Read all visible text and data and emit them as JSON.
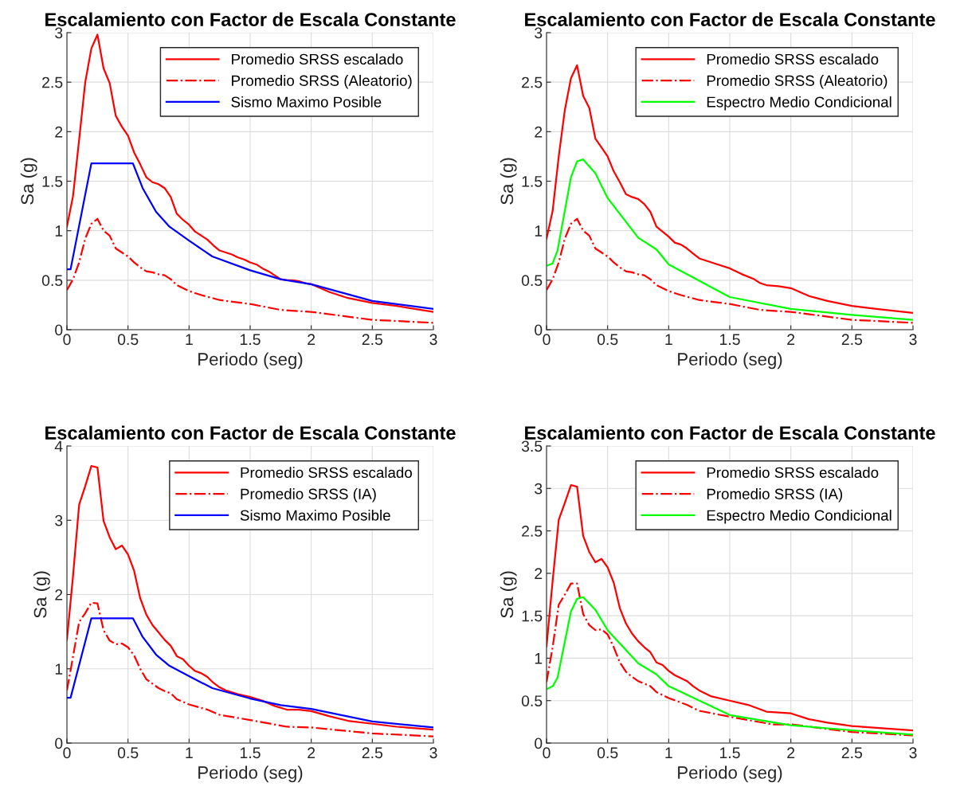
{
  "chart_data": [
    {
      "type": "line",
      "title": "Escalamiento con Factor de Escala Constante",
      "xlabel": "Periodo (seg)",
      "ylabel": "Sa (g)",
      "xlim": [
        0,
        3
      ],
      "xticks": [
        0,
        0.5,
        1,
        1.5,
        2,
        2.5,
        3
      ],
      "ylim": [
        0,
        3
      ],
      "yticks": [
        0,
        0.5,
        1,
        1.5,
        2,
        2.5,
        3
      ],
      "grid": true,
      "legend": "top right",
      "series": [
        {
          "name": "Promedio SRSS escalado",
          "color": "#ff0000",
          "line_style": "solid",
          "x": [
            0,
            0.05,
            0.1,
            0.15,
            0.2,
            0.25,
            0.3,
            0.35,
            0.4,
            0.45,
            0.5,
            0.55,
            0.6,
            0.65,
            0.7,
            0.75,
            0.8,
            0.85,
            0.9,
            0.95,
            1.0,
            1.05,
            1.1,
            1.15,
            1.2,
            1.25,
            1.3,
            1.35,
            1.4,
            1.45,
            1.5,
            1.55,
            1.6,
            1.65,
            1.7,
            1.75,
            1.8,
            1.85,
            1.9,
            1.95,
            2.0,
            2.15,
            2.3,
            2.5,
            2.7,
            3.0
          ],
          "values": [
            1.04,
            1.35,
            1.92,
            2.5,
            2.84,
            2.98,
            2.64,
            2.49,
            2.16,
            2.05,
            1.96,
            1.79,
            1.67,
            1.54,
            1.49,
            1.47,
            1.43,
            1.34,
            1.17,
            1.11,
            1.06,
            0.99,
            0.95,
            0.91,
            0.85,
            0.8,
            0.78,
            0.76,
            0.73,
            0.71,
            0.68,
            0.66,
            0.62,
            0.59,
            0.55,
            0.51,
            0.5,
            0.5,
            0.49,
            0.47,
            0.46,
            0.38,
            0.32,
            0.27,
            0.24,
            0.18
          ]
        },
        {
          "name": "Promedio SRSS (Aleatorio)",
          "color": "#ff0000",
          "line_style": "dashdot",
          "x": [
            0,
            0.05,
            0.1,
            0.15,
            0.2,
            0.25,
            0.3,
            0.35,
            0.4,
            0.45,
            0.5,
            0.55,
            0.6,
            0.65,
            0.7,
            0.75,
            0.8,
            0.85,
            0.9,
            1.0,
            1.1,
            1.25,
            1.5,
            1.75,
            2.0,
            2.5,
            3.0
          ],
          "values": [
            0.4,
            0.51,
            0.68,
            0.92,
            1.07,
            1.12,
            1.0,
            0.95,
            0.82,
            0.78,
            0.74,
            0.68,
            0.63,
            0.59,
            0.58,
            0.56,
            0.55,
            0.51,
            0.45,
            0.39,
            0.35,
            0.3,
            0.26,
            0.2,
            0.18,
            0.1,
            0.07
          ]
        },
        {
          "name": "Sismo Maximo Posible",
          "color": "#0000ff",
          "line_style": "solid",
          "x": [
            0,
            0.03,
            0.2,
            0.54,
            0.62,
            0.73,
            0.84,
            1.0,
            1.19,
            1.5,
            1.75,
            2.0,
            2.5,
            3.0
          ],
          "values": [
            0.61,
            0.61,
            1.68,
            1.68,
            1.43,
            1.19,
            1.04,
            0.9,
            0.74,
            0.6,
            0.51,
            0.46,
            0.29,
            0.21
          ]
        }
      ]
    },
    {
      "type": "line",
      "title": "Escalamiento con Factor de Escala Constante",
      "xlabel": "Periodo (seg)",
      "ylabel": "Sa (g)",
      "xlim": [
        0,
        3
      ],
      "xticks": [
        0,
        0.5,
        1,
        1.5,
        2,
        2.5,
        3
      ],
      "ylim": [
        0,
        3
      ],
      "yticks": [
        0,
        0.5,
        1,
        1.5,
        2,
        2.5,
        3
      ],
      "grid": true,
      "legend": "top right",
      "series": [
        {
          "name": "Promedio SRSS escalado",
          "color": "#ff0000",
          "line_style": "solid",
          "x": [
            0,
            0.05,
            0.1,
            0.15,
            0.2,
            0.25,
            0.3,
            0.35,
            0.4,
            0.45,
            0.5,
            0.55,
            0.6,
            0.65,
            0.7,
            0.75,
            0.8,
            0.85,
            0.9,
            0.95,
            1.0,
            1.05,
            1.1,
            1.15,
            1.2,
            1.25,
            1.3,
            1.35,
            1.4,
            1.5,
            1.6,
            1.7,
            1.75,
            1.8,
            1.9,
            2.0,
            2.15,
            2.3,
            2.5,
            2.7,
            3.0
          ],
          "values": [
            0.92,
            1.2,
            1.75,
            2.22,
            2.54,
            2.67,
            2.36,
            2.24,
            1.93,
            1.84,
            1.75,
            1.6,
            1.49,
            1.37,
            1.34,
            1.32,
            1.27,
            1.19,
            1.04,
            0.99,
            0.94,
            0.88,
            0.86,
            0.82,
            0.77,
            0.72,
            0.7,
            0.68,
            0.66,
            0.62,
            0.56,
            0.51,
            0.47,
            0.45,
            0.44,
            0.42,
            0.34,
            0.29,
            0.24,
            0.21,
            0.17
          ]
        },
        {
          "name": "Promedio SRSS (Aleatorio)",
          "color": "#ff0000",
          "line_style": "dashdot",
          "x": [
            0,
            0.05,
            0.1,
            0.15,
            0.2,
            0.25,
            0.3,
            0.35,
            0.4,
            0.45,
            0.5,
            0.55,
            0.6,
            0.65,
            0.7,
            0.75,
            0.8,
            0.85,
            0.9,
            1.0,
            1.1,
            1.25,
            1.5,
            1.75,
            2.0,
            2.5,
            3.0
          ],
          "values": [
            0.4,
            0.51,
            0.68,
            0.92,
            1.07,
            1.12,
            1.0,
            0.95,
            0.82,
            0.78,
            0.74,
            0.68,
            0.63,
            0.59,
            0.58,
            0.56,
            0.55,
            0.51,
            0.45,
            0.39,
            0.35,
            0.3,
            0.26,
            0.2,
            0.18,
            0.1,
            0.07
          ]
        },
        {
          "name": "Espectro Medio Condicional",
          "color": "#00ff00",
          "line_style": "solid",
          "x": [
            0.01,
            0.05,
            0.09,
            0.2,
            0.25,
            0.3,
            0.4,
            0.5,
            0.75,
            0.9,
            1.0,
            1.5,
            2.0,
            2.5,
            3.0
          ],
          "values": [
            0.65,
            0.67,
            0.8,
            1.54,
            1.7,
            1.72,
            1.58,
            1.33,
            0.93,
            0.81,
            0.66,
            0.33,
            0.21,
            0.15,
            0.1
          ]
        }
      ]
    },
    {
      "type": "line",
      "title": "Escalamiento con Factor de Escala Constante",
      "xlabel": "Periodo (seg)",
      "ylabel": "Sa (g)",
      "xlim": [
        0,
        3
      ],
      "xticks": [
        0,
        0.5,
        1,
        1.5,
        2,
        2.5,
        3
      ],
      "ylim": [
        0,
        4
      ],
      "yticks": [
        0,
        1,
        2,
        3,
        4
      ],
      "grid": true,
      "legend": "top right",
      "series": [
        {
          "name": "Promedio SRSS escalado",
          "color": "#ff0000",
          "line_style": "solid",
          "x": [
            0,
            0.05,
            0.1,
            0.15,
            0.2,
            0.25,
            0.3,
            0.35,
            0.4,
            0.45,
            0.5,
            0.55,
            0.6,
            0.65,
            0.7,
            0.75,
            0.8,
            0.85,
            0.9,
            0.95,
            1.0,
            1.05,
            1.1,
            1.15,
            1.2,
            1.25,
            1.3,
            1.4,
            1.5,
            1.6,
            1.7,
            1.8,
            1.9,
            2.0,
            2.15,
            2.3,
            2.5,
            2.7,
            3.0
          ],
          "values": [
            1.39,
            2.25,
            3.21,
            3.46,
            3.73,
            3.71,
            2.99,
            2.77,
            2.61,
            2.66,
            2.54,
            2.32,
            1.95,
            1.73,
            1.59,
            1.49,
            1.39,
            1.31,
            1.17,
            1.13,
            1.04,
            0.97,
            0.94,
            0.89,
            0.81,
            0.75,
            0.71,
            0.66,
            0.62,
            0.57,
            0.5,
            0.45,
            0.45,
            0.43,
            0.36,
            0.3,
            0.26,
            0.22,
            0.18
          ]
        },
        {
          "name": "Promedio SRSS (IA)",
          "color": "#ff0000",
          "line_style": "dashdot",
          "x": [
            0,
            0.03,
            0.1,
            0.15,
            0.2,
            0.25,
            0.3,
            0.35,
            0.4,
            0.45,
            0.5,
            0.55,
            0.6,
            0.65,
            0.7,
            0.75,
            0.8,
            0.85,
            0.9,
            1.0,
            1.15,
            1.25,
            1.5,
            1.8,
            2.0,
            2.5,
            3.0
          ],
          "values": [
            0.71,
            0.98,
            1.63,
            1.75,
            1.89,
            1.88,
            1.52,
            1.38,
            1.33,
            1.34,
            1.29,
            1.18,
            1.0,
            0.86,
            0.8,
            0.74,
            0.7,
            0.67,
            0.59,
            0.52,
            0.45,
            0.38,
            0.31,
            0.22,
            0.21,
            0.13,
            0.09
          ]
        },
        {
          "name": "Sismo Maximo Posible",
          "color": "#0000ff",
          "line_style": "solid",
          "x": [
            0,
            0.03,
            0.2,
            0.54,
            0.62,
            0.73,
            0.84,
            1.0,
            1.19,
            1.5,
            1.75,
            2.0,
            2.5,
            3.0
          ],
          "values": [
            0.61,
            0.61,
            1.68,
            1.68,
            1.43,
            1.19,
            1.04,
            0.9,
            0.74,
            0.6,
            0.51,
            0.46,
            0.29,
            0.21
          ]
        }
      ]
    },
    {
      "type": "line",
      "title": "Escalamiento con Factor de Escala Constante",
      "xlabel": "Periodo (seg)",
      "ylabel": "Sa (g)",
      "xlim": [
        0,
        3
      ],
      "xticks": [
        0,
        0.5,
        1,
        1.5,
        2,
        2.5,
        3
      ],
      "ylim": [
        0,
        3.5
      ],
      "yticks": [
        0,
        0.5,
        1,
        1.5,
        2,
        2.5,
        3,
        3.5
      ],
      "grid": true,
      "legend": "top right",
      "series": [
        {
          "name": "Promedio SRSS escalado",
          "color": "#ff0000",
          "line_style": "solid",
          "x": [
            0,
            0.05,
            0.1,
            0.15,
            0.2,
            0.25,
            0.3,
            0.35,
            0.4,
            0.45,
            0.5,
            0.55,
            0.6,
            0.65,
            0.7,
            0.75,
            0.8,
            0.85,
            0.9,
            0.95,
            1.0,
            1.05,
            1.15,
            1.2,
            1.25,
            1.35,
            1.5,
            1.65,
            1.8,
            1.9,
            2.0,
            2.15,
            2.3,
            2.5,
            2.7,
            3.0
          ],
          "values": [
            1.14,
            1.91,
            2.63,
            2.83,
            3.04,
            3.02,
            2.44,
            2.25,
            2.13,
            2.17,
            2.07,
            1.89,
            1.59,
            1.41,
            1.29,
            1.2,
            1.13,
            1.07,
            0.95,
            0.92,
            0.85,
            0.8,
            0.73,
            0.67,
            0.62,
            0.55,
            0.5,
            0.45,
            0.37,
            0.36,
            0.35,
            0.28,
            0.24,
            0.2,
            0.18,
            0.15
          ]
        },
        {
          "name": "Promedio SRSS (IA)",
          "color": "#ff0000",
          "line_style": "dashdot",
          "x": [
            0,
            0.05,
            0.1,
            0.15,
            0.2,
            0.25,
            0.3,
            0.35,
            0.4,
            0.45,
            0.5,
            0.55,
            0.6,
            0.65,
            0.7,
            0.75,
            0.85,
            0.9,
            1.0,
            1.15,
            1.25,
            1.5,
            1.85,
            2.0,
            2.5,
            3.0
          ],
          "values": [
            0.72,
            1.13,
            1.63,
            1.75,
            1.88,
            1.88,
            1.52,
            1.39,
            1.33,
            1.34,
            1.28,
            1.13,
            0.95,
            0.84,
            0.78,
            0.73,
            0.67,
            0.6,
            0.53,
            0.45,
            0.38,
            0.31,
            0.22,
            0.22,
            0.13,
            0.09
          ]
        },
        {
          "name": "Espectro Medio Condicional",
          "color": "#00ff00",
          "line_style": "solid",
          "x": [
            0.01,
            0.05,
            0.09,
            0.2,
            0.25,
            0.3,
            0.4,
            0.5,
            0.75,
            0.9,
            1.0,
            1.5,
            2.0,
            2.5,
            3.0
          ],
          "values": [
            0.64,
            0.67,
            0.77,
            1.55,
            1.7,
            1.72,
            1.57,
            1.33,
            0.94,
            0.81,
            0.67,
            0.33,
            0.21,
            0.15,
            0.1
          ]
        }
      ]
    }
  ]
}
